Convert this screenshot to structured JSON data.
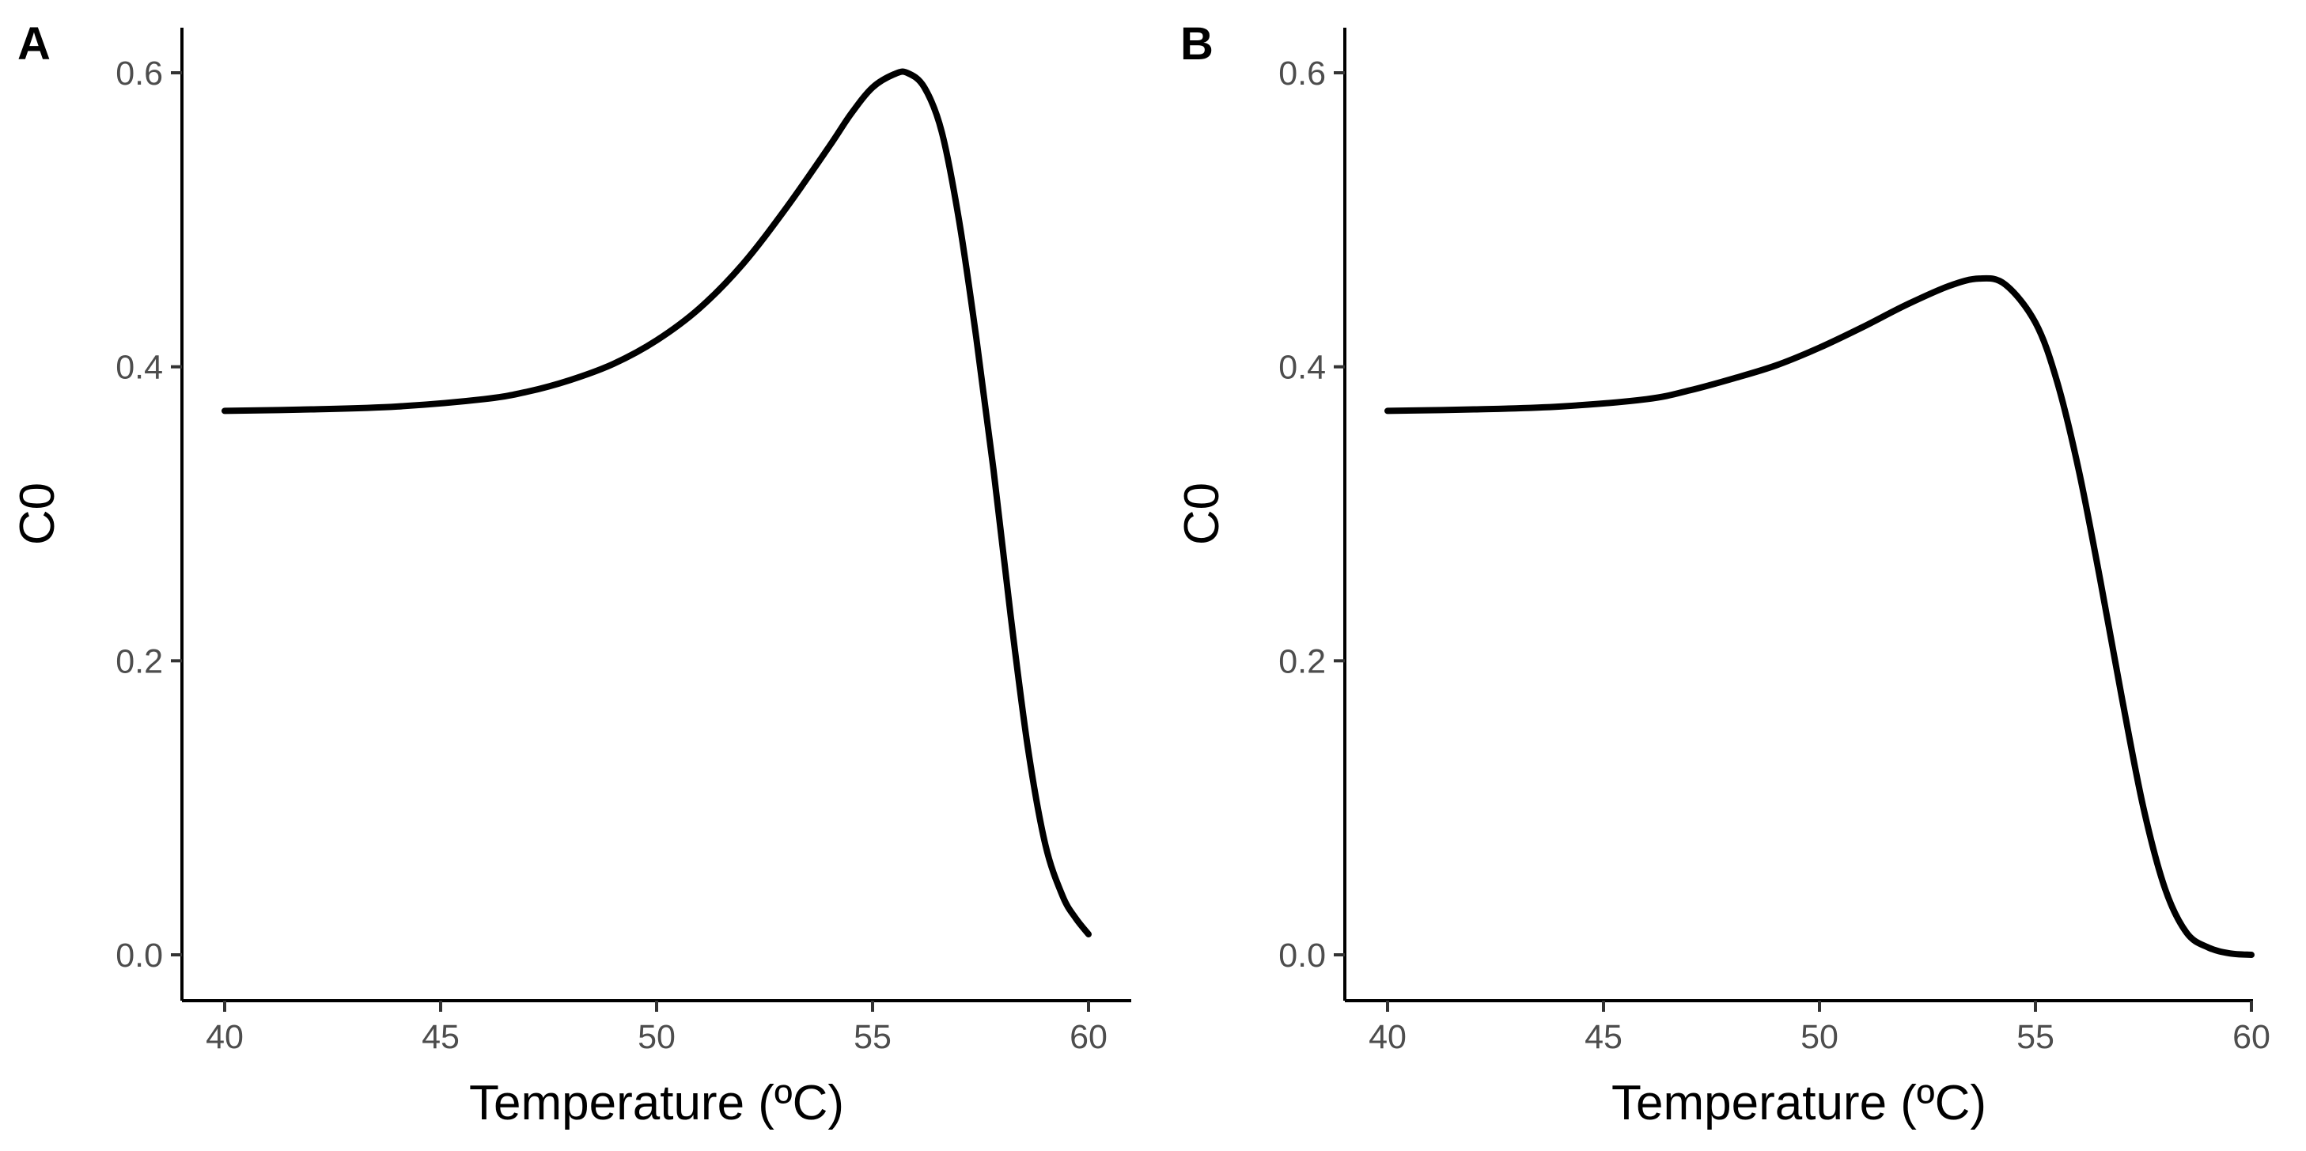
{
  "chart_data": [
    {
      "panel": "A",
      "type": "line",
      "title": "",
      "xlabel": "Temperature (ºC)",
      "ylabel": "C0",
      "xlim": [
        40,
        60
      ],
      "ylim": [
        0.0,
        0.6
      ],
      "xticks": [
        40,
        45,
        50,
        55,
        60
      ],
      "xtick_labels": [
        "40",
        "45",
        "50",
        "55",
        "60"
      ],
      "yticks": [
        0.0,
        0.2,
        0.4,
        0.6
      ],
      "ytick_labels": [
        "0.0",
        "0.2",
        "0.4",
        "0.6"
      ],
      "grid": false,
      "series": [
        {
          "name": "C0",
          "color": "#000000",
          "x": [
            40,
            42,
            44,
            46,
            47,
            48,
            49,
            50,
            51,
            52,
            53,
            54,
            54.5,
            55,
            55.5,
            55.8,
            56.2,
            56.6,
            57,
            57.4,
            57.8,
            58.2,
            58.6,
            59,
            59.4,
            59.7,
            60
          ],
          "y": [
            0.37,
            0.371,
            0.373,
            0.378,
            0.383,
            0.391,
            0.402,
            0.418,
            0.44,
            0.47,
            0.508,
            0.55,
            0.572,
            0.59,
            0.599,
            0.6,
            0.59,
            0.56,
            0.5,
            0.42,
            0.33,
            0.23,
            0.14,
            0.075,
            0.04,
            0.025,
            0.014
          ]
        }
      ]
    },
    {
      "panel": "B",
      "type": "line",
      "title": "",
      "xlabel": "Temperature (ºC)",
      "ylabel": "C0",
      "xlim": [
        40,
        60
      ],
      "ylim": [
        0.0,
        0.6
      ],
      "xticks": [
        40,
        45,
        50,
        55,
        60
      ],
      "xtick_labels": [
        "40",
        "45",
        "50",
        "55",
        "60"
      ],
      "yticks": [
        0.0,
        0.2,
        0.4,
        0.6
      ],
      "ytick_labels": [
        "0.0",
        "0.2",
        "0.4",
        "0.6"
      ],
      "grid": false,
      "series": [
        {
          "name": "C0",
          "color": "#000000",
          "x": [
            40,
            42,
            44,
            46,
            47,
            48,
            49,
            50,
            51,
            52,
            53,
            53.7,
            54.3,
            55,
            55.5,
            56,
            56.5,
            57,
            57.5,
            58,
            58.5,
            59,
            59.5,
            60
          ],
          "y": [
            0.37,
            0.371,
            0.373,
            0.378,
            0.384,
            0.392,
            0.401,
            0.413,
            0.427,
            0.442,
            0.455,
            0.46,
            0.456,
            0.43,
            0.39,
            0.33,
            0.255,
            0.175,
            0.1,
            0.045,
            0.015,
            0.005,
            0.001,
            0.0
          ]
        }
      ]
    }
  ]
}
